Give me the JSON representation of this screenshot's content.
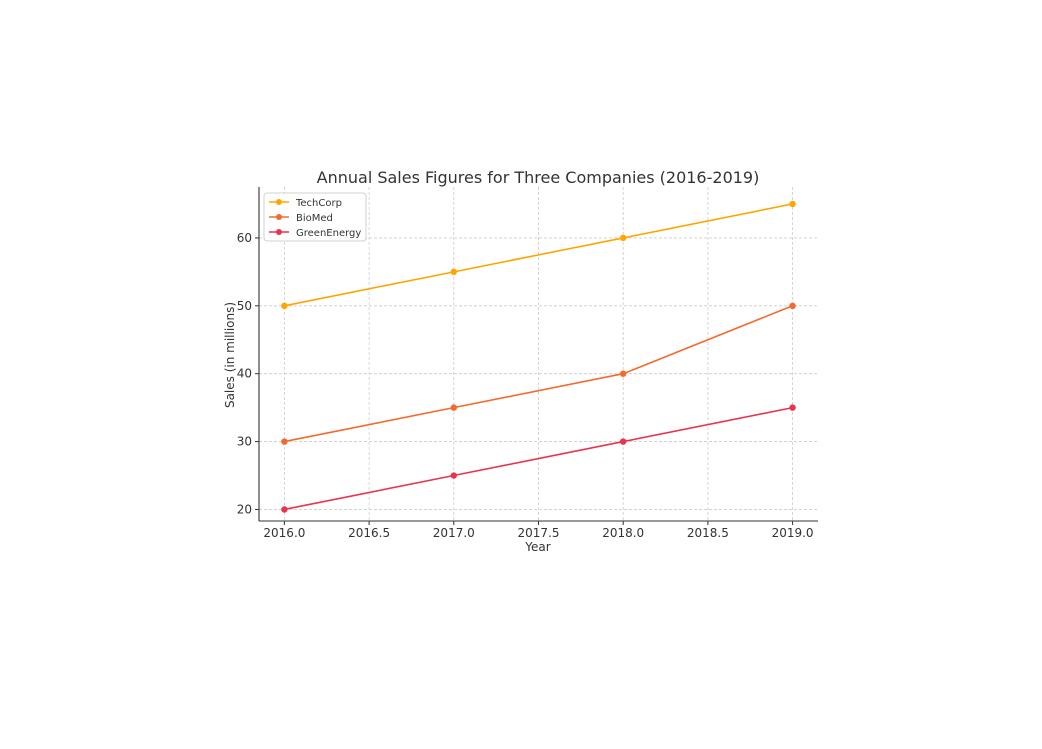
{
  "chart_data": {
    "type": "line",
    "title": "Annual Sales Figures for Three Companies (2016-2019)",
    "xlabel": "Year",
    "ylabel": "Sales (in millions)",
    "x": [
      2016,
      2017,
      2018,
      2019
    ],
    "xlim": [
      2015.85,
      2019.15
    ],
    "ylim": [
      18.3,
      67.5
    ],
    "xticks": [
      "2016.0",
      "2016.5",
      "2017.0",
      "2017.5",
      "2018.0",
      "2018.5",
      "2019.0"
    ],
    "xtick_values": [
      2016.0,
      2016.5,
      2017.0,
      2017.5,
      2018.0,
      2018.5,
      2019.0
    ],
    "yticks": [
      "20",
      "30",
      "40",
      "50",
      "60"
    ],
    "ytick_values": [
      20,
      30,
      40,
      50,
      60
    ],
    "grid": true,
    "legend_position": "upper-left",
    "series": [
      {
        "name": "TechCorp",
        "color": "#ffa500",
        "values": [
          50,
          55,
          60,
          65
        ]
      },
      {
        "name": "BioMed",
        "color": "#f26b2a",
        "values": [
          30,
          35,
          40,
          50
        ]
      },
      {
        "name": "GreenEnergy",
        "color": "#e8344e",
        "values": [
          20,
          25,
          30,
          35
        ]
      }
    ]
  }
}
